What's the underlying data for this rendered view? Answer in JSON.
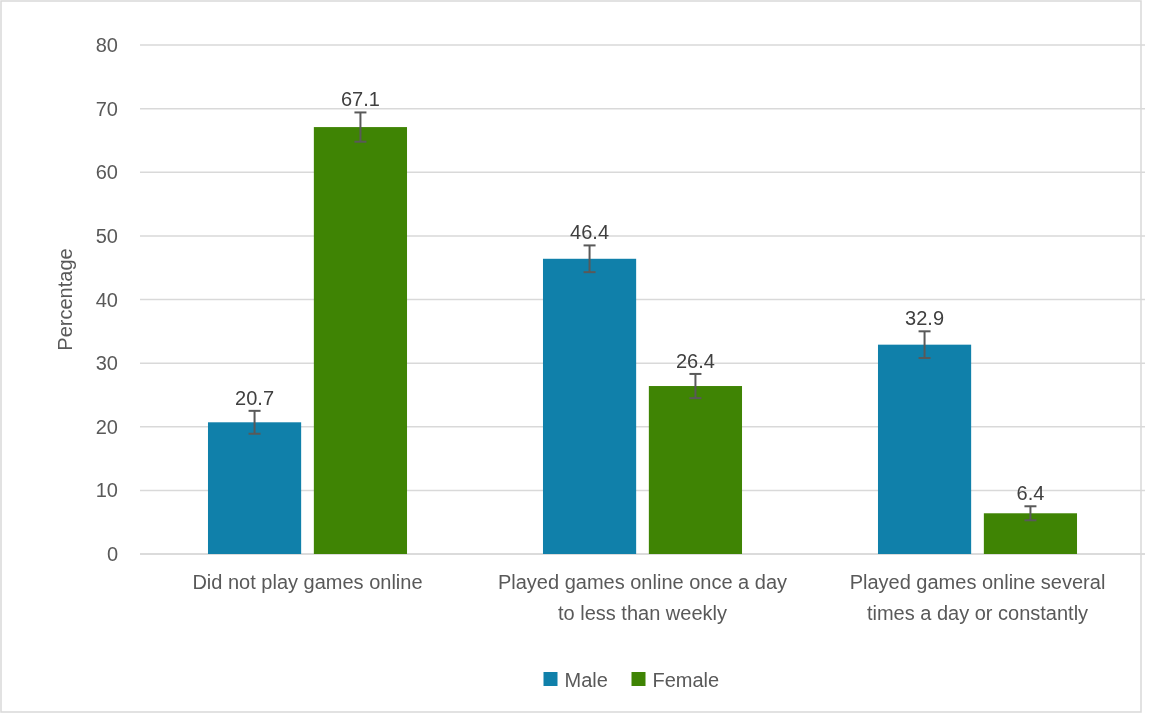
{
  "chart_data": {
    "type": "bar",
    "ylabel": "Percentage",
    "categories": [
      "Did not play games online",
      "Played games online once a day to less than weekly",
      "Played games online several times a day or constantly"
    ],
    "series": [
      {
        "name": "Male",
        "color": "#1080aa",
        "values": [
          20.7,
          46.4,
          32.9
        ],
        "errors": [
          1.8,
          2.1,
          2.1
        ]
      },
      {
        "name": "Female",
        "color": "#3f8404",
        "values": [
          67.1,
          26.4,
          6.4
        ],
        "errors": [
          2.3,
          1.9,
          1.1
        ]
      }
    ],
    "ylim": [
      0,
      80
    ],
    "yticks": [
      0,
      10,
      20,
      30,
      40,
      50,
      60,
      70,
      80
    ],
    "grid": "y",
    "legend": "bottom",
    "data_labels": true
  }
}
